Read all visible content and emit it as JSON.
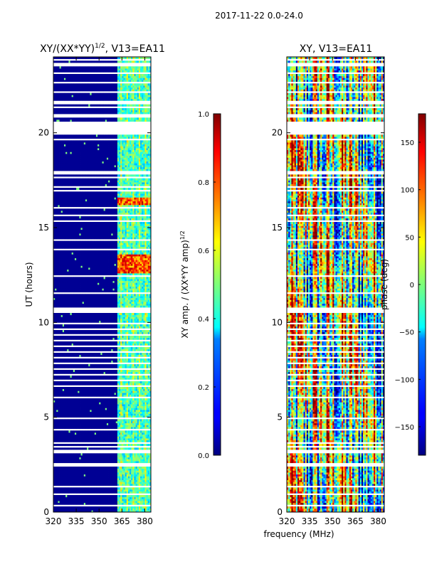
{
  "figure_title": "2017-11-22 0.0-24.0",
  "xlabel_common": "frequency (MHz)",
  "chart_data": [
    {
      "type": "heatmap",
      "title_main": "XY/(XX*YY)",
      "title_exp": "1/2",
      "title_suffix": ", V13=EA11",
      "xlabel": "",
      "ylabel": "UT (hours)",
      "xlim": [
        320,
        384
      ],
      "ylim": [
        0,
        24
      ],
      "xticks": [
        320,
        335,
        350,
        365,
        380
      ],
      "yticks": [
        0,
        5,
        10,
        15,
        20
      ],
      "colorbar": {
        "label_main": "XY amp. / (XX*YY amp)",
        "label_exp": "1/2",
        "range": [
          0.0,
          1.0
        ],
        "ticks": [
          0.0,
          0.2,
          0.4,
          0.6,
          0.8,
          1.0
        ],
        "tick_labels": [
          "0.0",
          "0.2",
          "0.4",
          "0.6",
          "0.8",
          "1.0"
        ]
      },
      "colormap": "jet",
      "signal_band_mhz": [
        362,
        381
      ],
      "notes": "near-zero (dark blue) below 362 MHz; 0.3-0.6 in band; peaks ~0.8-0.9 near 13 h and 16.3 h"
    },
    {
      "type": "heatmap",
      "title_main": "XY, V13=EA11",
      "xlabel": "",
      "ylabel": "",
      "xlim": [
        320,
        384
      ],
      "ylim": [
        0,
        24
      ],
      "xticks": [
        320,
        335,
        350,
        365,
        380
      ],
      "yticks": [
        0,
        5,
        10,
        15,
        20
      ],
      "colorbar": {
        "label_main": "phase (deg)",
        "range": [
          -180,
          180
        ],
        "ticks": [
          -150,
          -100,
          -50,
          0,
          50,
          100,
          150
        ],
        "tick_labels": [
          "−150",
          "−100",
          "−50",
          "0",
          "50",
          "100",
          "150"
        ]
      },
      "colormap": "jet",
      "notes": "phase varies across full range with vertical striping by channel"
    }
  ],
  "flagged_gaps_ut_hours": [
    [
      0.0,
      0.05
    ],
    [
      0.35,
      0.45
    ],
    [
      0.95,
      1.05
    ],
    [
      1.3,
      1.45
    ],
    [
      2.4,
      2.6
    ],
    [
      3.15,
      3.3
    ],
    [
      3.4,
      3.5
    ],
    [
      3.6,
      3.68
    ],
    [
      4.3,
      4.4
    ],
    [
      4.9,
      5.0
    ],
    [
      6.0,
      6.1
    ],
    [
      6.6,
      6.7
    ],
    [
      6.95,
      7.05
    ],
    [
      7.25,
      7.35
    ],
    [
      7.55,
      7.65
    ],
    [
      7.85,
      7.95
    ],
    [
      8.15,
      8.25
    ],
    [
      8.45,
      8.55
    ],
    [
      8.75,
      8.85
    ],
    [
      9.05,
      9.15
    ],
    [
      9.35,
      9.45
    ],
    [
      9.6,
      9.7
    ],
    [
      9.95,
      10.05
    ],
    [
      10.55,
      10.85
    ],
    [
      11.5,
      11.6
    ],
    [
      12.4,
      12.5
    ],
    [
      13.8,
      13.9
    ],
    [
      14.3,
      14.4
    ],
    [
      15.3,
      15.45
    ],
    [
      15.6,
      15.7
    ],
    [
      16.0,
      16.08
    ],
    [
      16.9,
      17.05
    ],
    [
      17.1,
      17.2
    ],
    [
      17.6,
      17.7
    ],
    [
      17.85,
      18.0
    ],
    [
      19.6,
      19.75
    ],
    [
      19.9,
      20.6
    ],
    [
      20.85,
      21.0
    ],
    [
      21.3,
      21.45
    ],
    [
      21.55,
      21.7
    ],
    [
      22.15,
      22.25
    ],
    [
      22.6,
      22.7
    ],
    [
      23.1,
      23.2
    ],
    [
      23.5,
      23.7
    ],
    [
      23.8,
      23.9
    ]
  ]
}
